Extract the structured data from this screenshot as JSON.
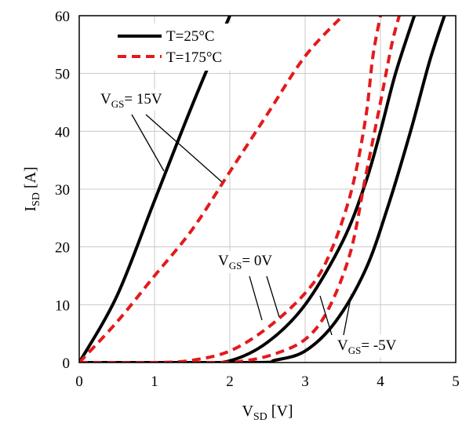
{
  "chart_data": {
    "type": "line",
    "title": "",
    "xlabel": {
      "main": "V",
      "sub": "SD",
      "unit": " [V]"
    },
    "ylabel": {
      "main": "I",
      "sub": "SD",
      "unit": " [A]"
    },
    "xlim": [
      0,
      5
    ],
    "ylim": [
      0,
      60
    ],
    "xticks": [
      0,
      1,
      2,
      3,
      4,
      5
    ],
    "yticks": [
      0,
      10,
      20,
      30,
      40,
      50,
      60
    ],
    "grid": true,
    "legend_position": "top-left",
    "legend": [
      {
        "label": "T=25°C",
        "color": "#000000",
        "style": "solid"
      },
      {
        "label": "T=175°C",
        "color": "#e31a1c",
        "style": "dashed"
      }
    ],
    "series": [
      {
        "temp": "25C",
        "vgs": "15V",
        "color": "#000000",
        "dashed": false,
        "points": [
          [
            0,
            0
          ],
          [
            0.5,
            11.5
          ],
          [
            1.0,
            28
          ],
          [
            1.5,
            44.5
          ],
          [
            2.0,
            60
          ]
        ]
      },
      {
        "temp": "175C",
        "vgs": "15V",
        "color": "#e31a1c",
        "dashed": true,
        "points": [
          [
            0,
            0
          ],
          [
            0.5,
            7
          ],
          [
            1.0,
            15
          ],
          [
            1.5,
            23
          ],
          [
            2.0,
            33
          ],
          [
            2.5,
            43
          ],
          [
            3.0,
            53
          ],
          [
            3.5,
            60
          ]
        ]
      },
      {
        "temp": "25C",
        "vgs": "0V",
        "color": "#000000",
        "dashed": false,
        "points": [
          [
            0,
            0
          ],
          [
            1.5,
            0
          ],
          [
            2.0,
            0.3
          ],
          [
            2.5,
            3.5
          ],
          [
            3.0,
            10
          ],
          [
            3.5,
            21
          ],
          [
            3.8,
            31
          ],
          [
            4.0,
            40
          ],
          [
            4.2,
            50
          ],
          [
            4.45,
            60
          ]
        ]
      },
      {
        "temp": "175C",
        "vgs": "0V",
        "color": "#e31a1c",
        "dashed": true,
        "points": [
          [
            0,
            0
          ],
          [
            1.0,
            0
          ],
          [
            1.5,
            0.4
          ],
          [
            2.0,
            2
          ],
          [
            2.5,
            6
          ],
          [
            3.0,
            12
          ],
          [
            3.3,
            18
          ],
          [
            3.6,
            29
          ],
          [
            3.8,
            42
          ],
          [
            3.9,
            53
          ],
          [
            4.0,
            60
          ]
        ]
      },
      {
        "temp": "25C",
        "vgs": "-5V",
        "color": "#000000",
        "dashed": false,
        "points": [
          [
            0,
            0
          ],
          [
            2.3,
            0
          ],
          [
            2.6,
            0.4
          ],
          [
            3.0,
            2
          ],
          [
            3.4,
            7
          ],
          [
            3.8,
            16
          ],
          [
            4.1,
            27
          ],
          [
            4.4,
            40
          ],
          [
            4.65,
            52
          ],
          [
            4.85,
            60
          ]
        ]
      },
      {
        "temp": "175C",
        "vgs": "-5V",
        "color": "#e31a1c",
        "dashed": true,
        "points": [
          [
            0,
            0
          ],
          [
            1.8,
            0
          ],
          [
            2.2,
            0.3
          ],
          [
            2.6,
            1.5
          ],
          [
            3.0,
            4
          ],
          [
            3.3,
            9
          ],
          [
            3.6,
            19
          ],
          [
            3.8,
            32
          ],
          [
            4.0,
            45
          ],
          [
            4.15,
            55
          ],
          [
            4.25,
            60
          ]
        ]
      }
    ],
    "annotations": [
      {
        "main": "V",
        "sub": "GS",
        "rest": "= 15V"
      },
      {
        "main": "V",
        "sub": "GS",
        "rest": "= 0V"
      },
      {
        "main": "V",
        "sub": "GS",
        "rest": "= -5V"
      }
    ]
  }
}
